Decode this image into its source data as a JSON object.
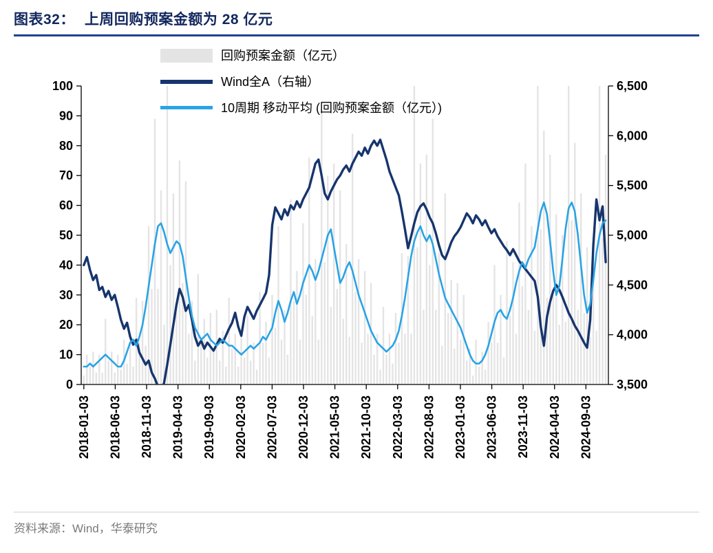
{
  "title": {
    "prefix": "图表32：",
    "text": "上周回购预案金额为 28 亿元"
  },
  "source": "资料来源：Wind，华泰研究",
  "chart_data": {
    "type": "combo",
    "title": "上周回购预案金额为 28 亿元",
    "legend_position": "top-left-inside",
    "grid": false,
    "x_tick_labels": [
      "2018-01-03",
      "2018-06-03",
      "2018-11-03",
      "2019-04-03",
      "2019-09-03",
      "2020-02-03",
      "2020-07-03",
      "2020-12-03",
      "2021-05-03",
      "2021-10-03",
      "2022-03-03",
      "2022-08-03",
      "2023-01-03",
      "2023-06-03",
      "2023-11-03",
      "2024-04-03",
      "2024-09-03"
    ],
    "x_tick0_year": 2018.005,
    "x_tick_interval_months": 5,
    "x_range": [
      2017.97,
      2024.97
    ],
    "x0_year": 2018.005,
    "x_step_years": 0.041,
    "left_axis": {
      "min": 0,
      "max": 100,
      "step": 10
    },
    "right_axis": {
      "min": 3500,
      "max": 6500,
      "step": 500,
      "tick_labels": [
        "3,500",
        "4,000",
        "4,500",
        "5,000",
        "5,500",
        "6,000",
        "6,500"
      ]
    },
    "series": [
      {
        "name": "回购预案金额（亿元）",
        "type": "bar",
        "axis": "left",
        "color": "#e4e4e4",
        "values": [
          3,
          10,
          6,
          11,
          4,
          10,
          4,
          22,
          8,
          11,
          4,
          10,
          5,
          15,
          7,
          17,
          6,
          29,
          14,
          28,
          13,
          53,
          32,
          89,
          32,
          65,
          20,
          100,
          40,
          64,
          24,
          75,
          34,
          68,
          17,
          28,
          8,
          37,
          14,
          22,
          9,
          24,
          11,
          25,
          8,
          18,
          6,
          29,
          12,
          17,
          6,
          16,
          9,
          23,
          8,
          14,
          5,
          31,
          14,
          21,
          9,
          30,
          19,
          53,
          15,
          25,
          10,
          62,
          28,
          38,
          15,
          54,
          30,
          76,
          23,
          42,
          15,
          92,
          41,
          70,
          26,
          74,
          32,
          65,
          22,
          47,
          16,
          84,
          31,
          42,
          14,
          38,
          17,
          34,
          10,
          17,
          5,
          26,
          10,
          17,
          7,
          24,
          14,
          44,
          17,
          43,
          17,
          100,
          46,
          74,
          25,
          77,
          40,
          89,
          25,
          44,
          13,
          64,
          24,
          35,
          12,
          34,
          15,
          30,
          8,
          12,
          3,
          15,
          6,
          11,
          5,
          21,
          14,
          40,
          14,
          30,
          9,
          48,
          23,
          41,
          17,
          61,
          33,
          74,
          25,
          53,
          18,
          100,
          52,
          85,
          29,
          77,
          30,
          57,
          20,
          50,
          21,
          100,
          55,
          81,
          25,
          64,
          24,
          46,
          16,
          42,
          18,
          100,
          49,
          77
        ]
      },
      {
        "name": "Wind全A（右轴）",
        "type": "line",
        "axis": "right",
        "color": "#17356d",
        "values": [
          4700,
          4780,
          4650,
          4550,
          4600,
          4450,
          4480,
          4380,
          4440,
          4350,
          4400,
          4280,
          4150,
          4060,
          4120,
          3980,
          3900,
          3950,
          3820,
          3760,
          3700,
          3740,
          3620,
          3560,
          3480,
          3420,
          3520,
          3700,
          3900,
          4100,
          4300,
          4460,
          4380,
          4240,
          4300,
          4150,
          3980,
          3890,
          3940,
          3860,
          3920,
          3880,
          3840,
          3900,
          3960,
          3920,
          3990,
          4060,
          4120,
          4220,
          4080,
          3990,
          4180,
          4280,
          4220,
          4160,
          4240,
          4300,
          4360,
          4420,
          4600,
          5100,
          5280,
          5220,
          5160,
          5260,
          5200,
          5300,
          5260,
          5340,
          5280,
          5360,
          5420,
          5480,
          5600,
          5720,
          5760,
          5600,
          5420,
          5360,
          5440,
          5500,
          5560,
          5600,
          5660,
          5700,
          5640,
          5720,
          5780,
          5840,
          5800,
          5880,
          5820,
          5900,
          5950,
          5900,
          5960,
          5860,
          5760,
          5640,
          5560,
          5480,
          5400,
          5240,
          5060,
          4870,
          4990,
          5120,
          5230,
          5290,
          5320,
          5260,
          5180,
          5120,
          5020,
          4900,
          4800,
          4760,
          4840,
          4930,
          4990,
          5030,
          5080,
          5150,
          5220,
          5180,
          5120,
          5200,
          5160,
          5100,
          5150,
          5080,
          5020,
          5060,
          4990,
          4940,
          4890,
          4850,
          4800,
          4860,
          4800,
          4740,
          4700,
          4660,
          4620,
          4580,
          4540,
          4380,
          4080,
          3890,
          4180,
          4330,
          4440,
          4500,
          4450,
          4380,
          4300,
          4220,
          4160,
          4090,
          4040,
          3980,
          3920,
          3870,
          4150,
          4900,
          5360,
          5150,
          5290,
          4730
        ]
      },
      {
        "name": "10周期 移动平均 (回购预案金额（亿元）)",
        "type": "line",
        "axis": "left",
        "color": "#29a3e6",
        "values": [
          6,
          6,
          7,
          6,
          7,
          8,
          9,
          10,
          9,
          8,
          7,
          6,
          6,
          8,
          11,
          14,
          15,
          13,
          16,
          20,
          26,
          33,
          40,
          47,
          53,
          54,
          51,
          47,
          44,
          46,
          48,
          47,
          43,
          36,
          29,
          23,
          19,
          17,
          15,
          16,
          17,
          15,
          14,
          13,
          14,
          15,
          14,
          13,
          13,
          12,
          11,
          10,
          11,
          12,
          13,
          12,
          13,
          14,
          16,
          15,
          17,
          19,
          24,
          28,
          25,
          21,
          24,
          28,
          31,
          27,
          30,
          34,
          37,
          40,
          38,
          35,
          38,
          42,
          46,
          50,
          52,
          46,
          40,
          34,
          36,
          39,
          41,
          38,
          34,
          30,
          27,
          24,
          21,
          18,
          16,
          14,
          13,
          12,
          11,
          12,
          13,
          15,
          18,
          23,
          29,
          36,
          43,
          48,
          51,
          53,
          50,
          48,
          50,
          47,
          42,
          37,
          33,
          29,
          27,
          25,
          23,
          21,
          19,
          16,
          13,
          10,
          8,
          7,
          7,
          8,
          10,
          13,
          17,
          21,
          24,
          25,
          23,
          22,
          25,
          29,
          34,
          38,
          41,
          39,
          42,
          44,
          46,
          52,
          58,
          61,
          57,
          48,
          38,
          30,
          33,
          42,
          52,
          59,
          61,
          58,
          50,
          40,
          30,
          24,
          27,
          35,
          44,
          50,
          54,
          55
        ]
      }
    ]
  }
}
